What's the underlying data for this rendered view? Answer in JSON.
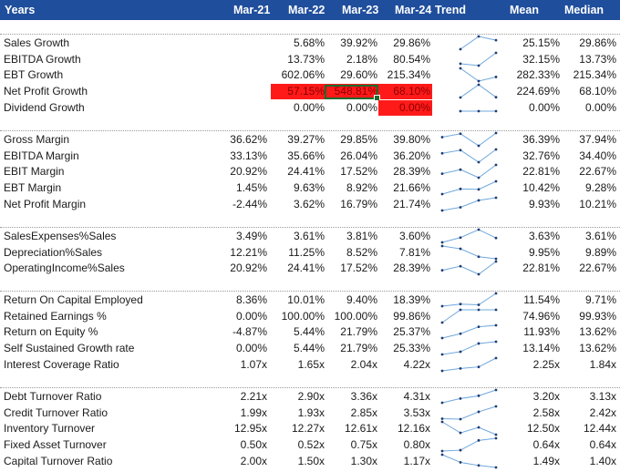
{
  "header": {
    "years_label": "Years",
    "periods": [
      "Mar-21",
      "Mar-22",
      "Mar-23",
      "Mar-24"
    ],
    "trend_label": "Trend",
    "mean_label": "Mean",
    "median_label": "Median"
  },
  "colors": {
    "header_bg": "#1f4e9c",
    "highlight": "#ff1a1a",
    "sparkline": "#6fa8dc",
    "selection": "#1b6b2e"
  },
  "groups": [
    {
      "rows": [
        {
          "label": "Sales Growth",
          "values": [
            "",
            "5.68%",
            "39.92%",
            "29.86%"
          ],
          "spark": [
            null,
            5.68,
            39.92,
            29.86
          ],
          "mean": "25.15%",
          "median": "29.86%"
        },
        {
          "label": "EBITDA Growth",
          "values": [
            "",
            "13.73%",
            "2.18%",
            "80.54%"
          ],
          "spark": [
            null,
            13.73,
            2.18,
            80.54
          ],
          "mean": "32.15%",
          "median": "13.73%"
        },
        {
          "label": "EBT Growth",
          "values": [
            "",
            "602.06%",
            "29.60%",
            "215.34%"
          ],
          "spark": [
            null,
            602.06,
            29.6,
            215.34
          ],
          "mean": "282.33%",
          "median": "215.34%"
        },
        {
          "label": "Net Profit Growth",
          "values": [
            "",
            "57.15%",
            "548.81%",
            "68.10%"
          ],
          "spark": [
            null,
            57.15,
            548.81,
            68.1
          ],
          "mean": "224.69%",
          "median": "68.10%",
          "highlight": [
            1,
            2,
            3
          ],
          "selected": 2
        },
        {
          "label": "Dividend Growth",
          "values": [
            "",
            "0.00%",
            "0.00%",
            "0.00%"
          ],
          "spark": [
            null,
            0,
            0,
            0
          ],
          "mean": "0.00%",
          "median": "0.00%",
          "highlight": [
            3
          ]
        }
      ]
    },
    {
      "rows": [
        {
          "label": "Gross Margin",
          "values": [
            "36.62%",
            "39.27%",
            "29.85%",
            "39.80%"
          ],
          "spark": [
            36.62,
            39.27,
            29.85,
            39.8
          ],
          "mean": "36.39%",
          "median": "37.94%"
        },
        {
          "label": "EBITDA Margin",
          "values": [
            "33.13%",
            "35.66%",
            "26.04%",
            "36.20%"
          ],
          "spark": [
            33.13,
            35.66,
            26.04,
            36.2
          ],
          "mean": "32.76%",
          "median": "34.40%"
        },
        {
          "label": "EBIT Margin",
          "values": [
            "20.92%",
            "24.41%",
            "17.52%",
            "28.39%"
          ],
          "spark": [
            20.92,
            24.41,
            17.52,
            28.39
          ],
          "mean": "22.81%",
          "median": "22.67%"
        },
        {
          "label": "EBT Margin",
          "values": [
            "1.45%",
            "9.63%",
            "8.92%",
            "21.66%"
          ],
          "spark": [
            1.45,
            9.63,
            8.92,
            21.66
          ],
          "mean": "10.42%",
          "median": "9.28%"
        },
        {
          "label": "Net Profit Margin",
          "values": [
            "-2.44%",
            "3.62%",
            "16.79%",
            "21.74%"
          ],
          "spark": [
            -2.44,
            3.62,
            16.79,
            21.74
          ],
          "mean": "9.93%",
          "median": "10.21%"
        }
      ]
    },
    {
      "rows": [
        {
          "label": "SalesExpenses%Sales",
          "values": [
            "3.49%",
            "3.61%",
            "3.81%",
            "3.60%"
          ],
          "spark": [
            3.49,
            3.61,
            3.81,
            3.6
          ],
          "mean": "3.63%",
          "median": "3.61%"
        },
        {
          "label": "Depreciation%Sales",
          "values": [
            "12.21%",
            "11.25%",
            "8.52%",
            "7.81%"
          ],
          "spark": [
            12.21,
            11.25,
            8.52,
            7.81
          ],
          "mean": "9.95%",
          "median": "9.89%"
        },
        {
          "label": "OperatingIncome%Sales",
          "values": [
            "20.92%",
            "24.41%",
            "17.52%",
            "28.39%"
          ],
          "spark": [
            20.92,
            24.41,
            17.52,
            28.39
          ],
          "mean": "22.81%",
          "median": "22.67%"
        }
      ]
    },
    {
      "rows": [
        {
          "label": "Return On Capital Employed",
          "values": [
            "8.36%",
            "10.01%",
            "9.40%",
            "18.39%"
          ],
          "spark": [
            8.36,
            10.01,
            9.4,
            18.39
          ],
          "mean": "11.54%",
          "median": "9.71%"
        },
        {
          "label": "Retained Earnings %",
          "values": [
            "0.00%",
            "100.00%",
            "100.00%",
            "99.86%"
          ],
          "spark": [
            0,
            100,
            100,
            99.86
          ],
          "mean": "74.96%",
          "median": "99.93%"
        },
        {
          "label": "Return on Equity %",
          "values": [
            "-4.87%",
            "5.44%",
            "21.79%",
            "25.37%"
          ],
          "spark": [
            -4.87,
            5.44,
            21.79,
            25.37
          ],
          "mean": "11.93%",
          "median": "13.62%"
        },
        {
          "label": "Self Sustained Growth rate",
          "values": [
            "0.00%",
            "5.44%",
            "21.79%",
            "25.33%"
          ],
          "spark": [
            0,
            5.44,
            21.79,
            25.33
          ],
          "mean": "13.14%",
          "median": "13.62%"
        },
        {
          "label": "Interest Coverage Ratio",
          "values": [
            "1.07x",
            "1.65x",
            "2.04x",
            "4.22x"
          ],
          "spark": [
            1.07,
            1.65,
            2.04,
            4.22
          ],
          "mean": "2.25x",
          "median": "1.84x"
        }
      ]
    },
    {
      "rows": [
        {
          "label": "Debt Turnover Ratio",
          "values": [
            "2.21x",
            "2.90x",
            "3.36x",
            "4.31x"
          ],
          "spark": [
            2.21,
            2.9,
            3.36,
            4.31
          ],
          "mean": "3.20x",
          "median": "3.13x"
        },
        {
          "label": "Credit Turnover Ratio",
          "values": [
            "1.99x",
            "1.93x",
            "2.85x",
            "3.53x"
          ],
          "spark": [
            1.99,
            1.93,
            2.85,
            3.53
          ],
          "mean": "2.58x",
          "median": "2.42x"
        },
        {
          "label": "Inventory Turnover",
          "values": [
            "12.95x",
            "12.27x",
            "12.61x",
            "12.16x"
          ],
          "spark": [
            12.95,
            12.27,
            12.61,
            12.16
          ],
          "mean": "12.50x",
          "median": "12.44x"
        },
        {
          "label": "Fixed Asset Turnover",
          "values": [
            "0.50x",
            "0.52x",
            "0.75x",
            "0.80x"
          ],
          "spark": [
            0.5,
            0.52,
            0.75,
            0.8
          ],
          "mean": "0.64x",
          "median": "0.64x"
        },
        {
          "label": "Capital Turnover Ratio",
          "values": [
            "2.00x",
            "1.50x",
            "1.30x",
            "1.17x"
          ],
          "spark": [
            2.0,
            1.5,
            1.3,
            1.17
          ],
          "mean": "1.49x",
          "median": "1.40x"
        }
      ]
    }
  ]
}
